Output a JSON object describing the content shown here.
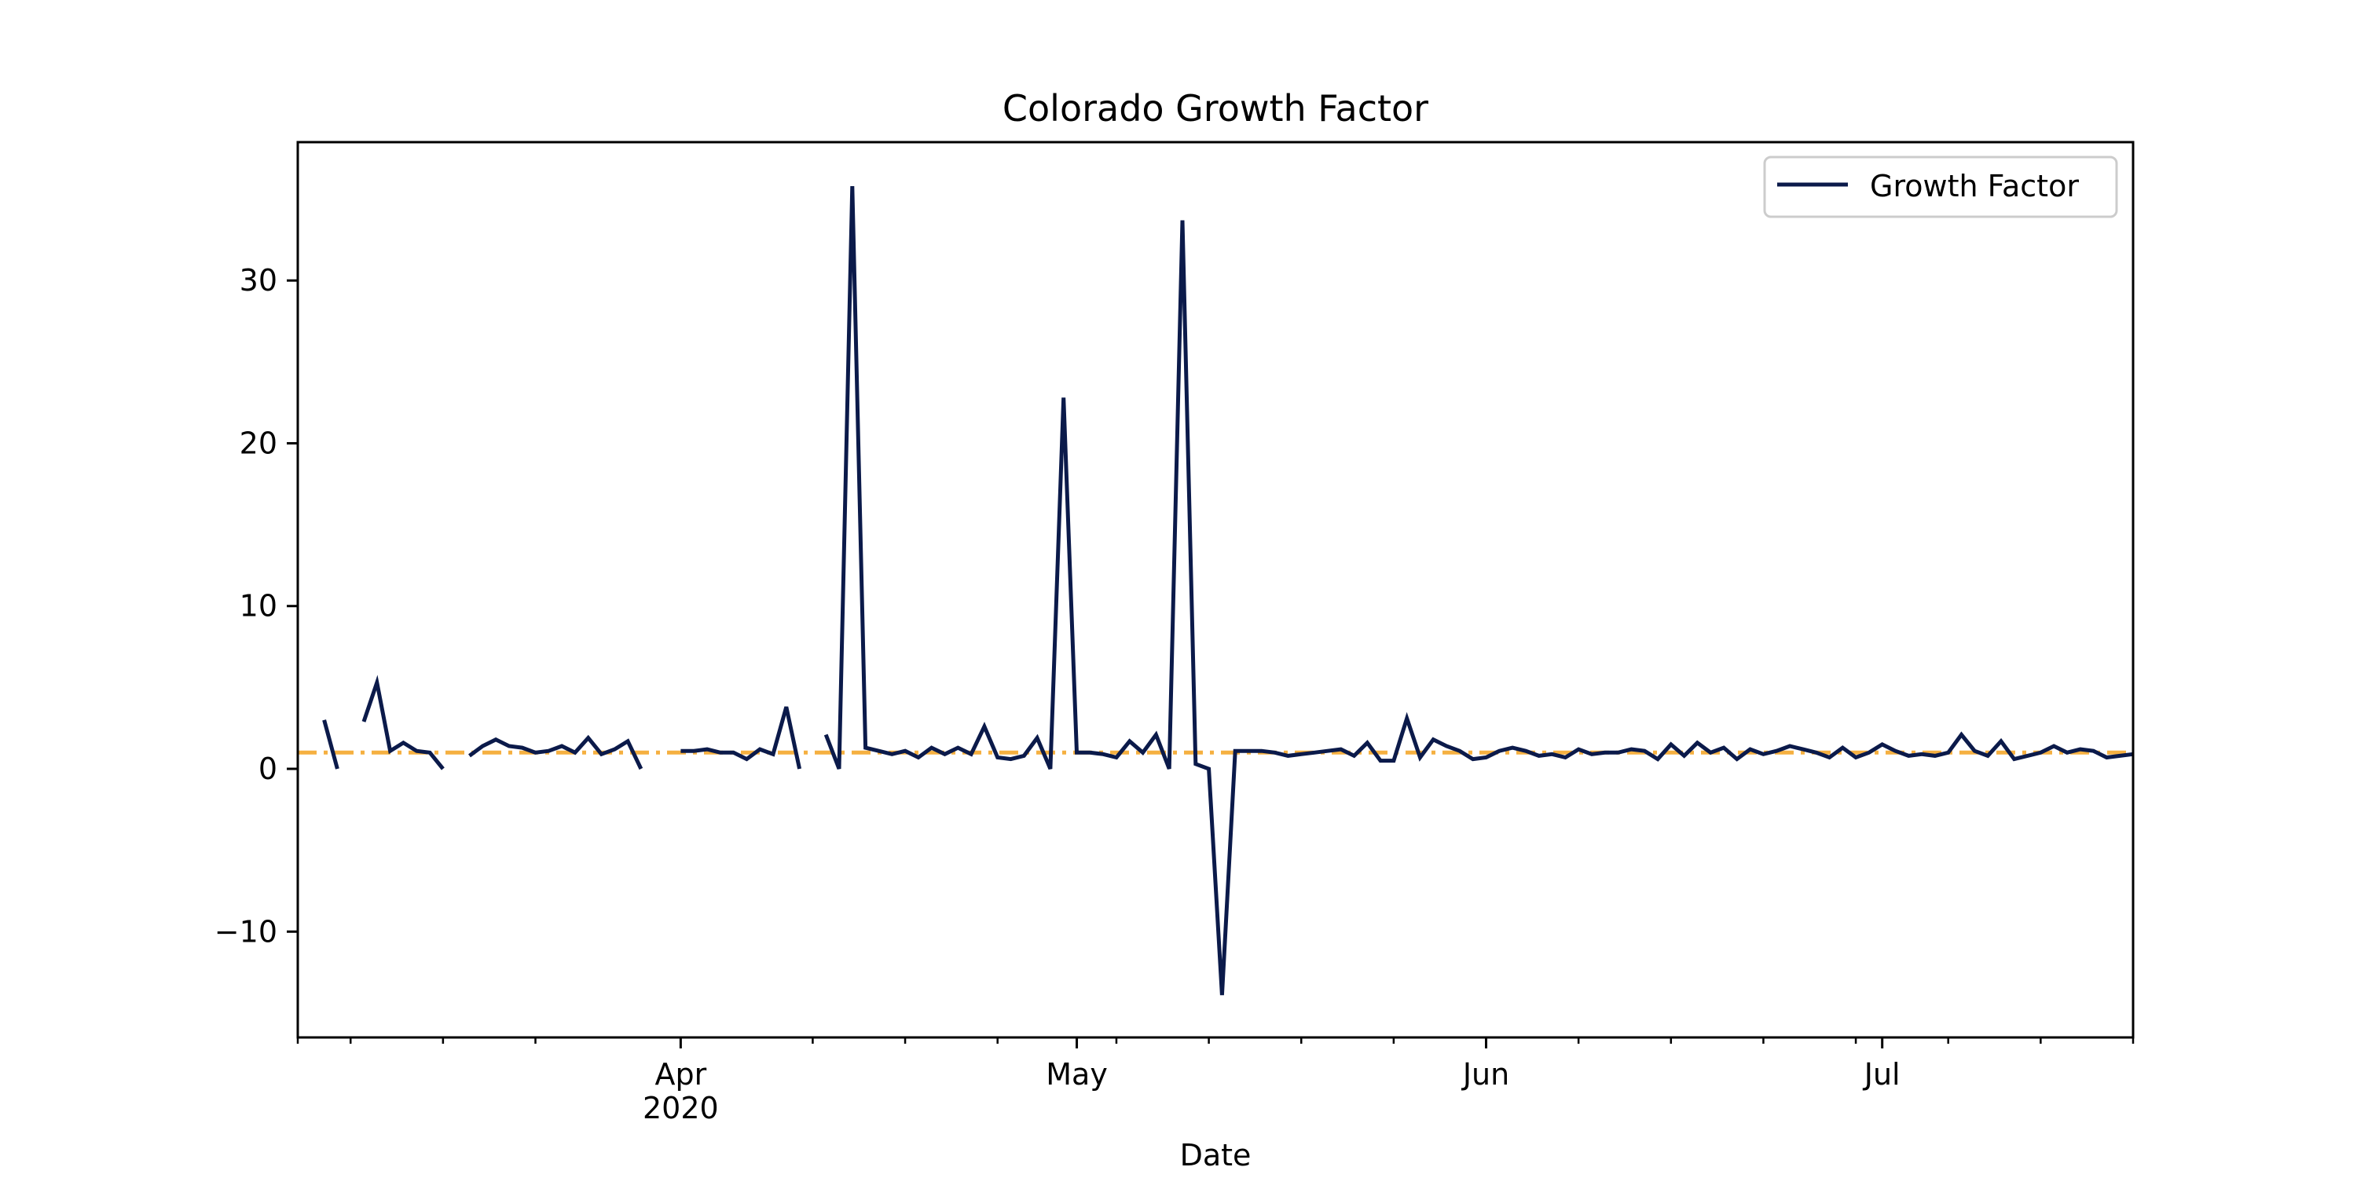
{
  "chart_data": {
    "type": "line",
    "title": "Colorado Growth Factor",
    "xlabel": "Date",
    "ylabel": "",
    "xlim": [
      "2020-03-03",
      "2020-07-20"
    ],
    "ylim": [
      -16.5,
      38.5
    ],
    "y_ticks": [
      -10,
      0,
      10,
      20,
      30
    ],
    "y_tick_labels": [
      "−10",
      "0",
      "10",
      "20",
      "30"
    ],
    "x_major_ticks": [
      {
        "date": "2020-04-01",
        "label": "Apr",
        "sublabel": "2020"
      },
      {
        "date": "2020-05-01",
        "label": "May",
        "sublabel": ""
      },
      {
        "date": "2020-06-01",
        "label": "Jun",
        "sublabel": ""
      },
      {
        "date": "2020-07-01",
        "label": "Jul",
        "sublabel": ""
      }
    ],
    "x_minor_ticks": [
      "2020-03-03",
      "2020-03-07",
      "2020-03-14",
      "2020-03-21",
      "2020-04-11",
      "2020-04-18",
      "2020-04-25",
      "2020-05-04",
      "2020-05-11",
      "2020-05-18",
      "2020-05-25",
      "2020-06-08",
      "2020-06-15",
      "2020-06-22",
      "2020-06-29",
      "2020-07-06",
      "2020-07-13",
      "2020-07-20"
    ],
    "grid": false,
    "legend_position": "top-right",
    "series": [
      {
        "name": "Growth Factor",
        "color": "#0b1a4a",
        "style": "solid",
        "points": [
          [
            "2020-03-05",
            3.0
          ],
          [
            "2020-03-06",
            0.0
          ],
          [
            "2020-03-07",
            null
          ],
          [
            "2020-03-08",
            2.9
          ],
          [
            "2020-03-09",
            5.3
          ],
          [
            "2020-03-10",
            1.1
          ],
          [
            "2020-03-11",
            1.6
          ],
          [
            "2020-03-12",
            1.1
          ],
          [
            "2020-03-13",
            1.0
          ],
          [
            "2020-03-14",
            0.0
          ],
          [
            "2020-03-15",
            null
          ],
          [
            "2020-03-16",
            0.8
          ],
          [
            "2020-03-17",
            1.4
          ],
          [
            "2020-03-18",
            1.8
          ],
          [
            "2020-03-19",
            1.4
          ],
          [
            "2020-03-20",
            1.3
          ],
          [
            "2020-03-21",
            1.0
          ],
          [
            "2020-03-22",
            1.1
          ],
          [
            "2020-03-23",
            1.4
          ],
          [
            "2020-03-24",
            1.0
          ],
          [
            "2020-03-25",
            1.9
          ],
          [
            "2020-03-26",
            0.9
          ],
          [
            "2020-03-27",
            1.2
          ],
          [
            "2020-03-28",
            1.7
          ],
          [
            "2020-03-29",
            0.0
          ],
          [
            "2020-03-30",
            null
          ],
          [
            "2020-04-01",
            1.1
          ],
          [
            "2020-04-02",
            1.1
          ],
          [
            "2020-04-03",
            1.2
          ],
          [
            "2020-04-04",
            1.0
          ],
          [
            "2020-04-05",
            1.0
          ],
          [
            "2020-04-06",
            0.6
          ],
          [
            "2020-04-07",
            1.2
          ],
          [
            "2020-04-08",
            0.9
          ],
          [
            "2020-04-09",
            3.8
          ],
          [
            "2020-04-10",
            0.0
          ],
          [
            "2020-04-11",
            null
          ],
          [
            "2020-04-12",
            2.1
          ],
          [
            "2020-04-13",
            0.0
          ],
          [
            "2020-04-14",
            35.8
          ],
          [
            "2020-04-15",
            1.3
          ],
          [
            "2020-04-16",
            1.1
          ],
          [
            "2020-04-17",
            0.9
          ],
          [
            "2020-04-18",
            1.1
          ],
          [
            "2020-04-19",
            0.7
          ],
          [
            "2020-04-20",
            1.3
          ],
          [
            "2020-04-21",
            0.9
          ],
          [
            "2020-04-22",
            1.3
          ],
          [
            "2020-04-23",
            0.9
          ],
          [
            "2020-04-24",
            2.6
          ],
          [
            "2020-04-25",
            0.7
          ],
          [
            "2020-04-26",
            0.6
          ],
          [
            "2020-04-27",
            0.8
          ],
          [
            "2020-04-28",
            1.9
          ],
          [
            "2020-04-29",
            0.0
          ],
          [
            "2020-04-30",
            22.8
          ],
          [
            "2020-05-01",
            1.0
          ],
          [
            "2020-05-02",
            1.0
          ],
          [
            "2020-05-03",
            0.9
          ],
          [
            "2020-05-04",
            0.7
          ],
          [
            "2020-05-05",
            1.7
          ],
          [
            "2020-05-06",
            1.0
          ],
          [
            "2020-05-07",
            2.1
          ],
          [
            "2020-05-08",
            0.0
          ],
          [
            "2020-05-09",
            33.7
          ],
          [
            "2020-05-10",
            0.3
          ],
          [
            "2020-05-11",
            0.0
          ],
          [
            "2020-05-12",
            -13.9
          ],
          [
            "2020-05-13",
            1.1
          ],
          [
            "2020-05-14",
            1.1
          ],
          [
            "2020-05-15",
            1.1
          ],
          [
            "2020-05-16",
            1.0
          ],
          [
            "2020-05-17",
            0.8
          ],
          [
            "2020-05-18",
            0.9
          ],
          [
            "2020-05-19",
            1.0
          ],
          [
            "2020-05-20",
            1.1
          ],
          [
            "2020-05-21",
            1.2
          ],
          [
            "2020-05-22",
            0.8
          ],
          [
            "2020-05-23",
            1.6
          ],
          [
            "2020-05-24",
            0.5
          ],
          [
            "2020-05-25",
            0.5
          ],
          [
            "2020-05-26",
            3.1
          ],
          [
            "2020-05-27",
            0.7
          ],
          [
            "2020-05-28",
            1.8
          ],
          [
            "2020-05-29",
            1.4
          ],
          [
            "2020-05-30",
            1.1
          ],
          [
            "2020-05-31",
            0.6
          ],
          [
            "2020-06-01",
            0.7
          ],
          [
            "2020-06-02",
            1.1
          ],
          [
            "2020-06-03",
            1.3
          ],
          [
            "2020-06-04",
            1.1
          ],
          [
            "2020-06-05",
            0.8
          ],
          [
            "2020-06-06",
            0.9
          ],
          [
            "2020-06-07",
            0.7
          ],
          [
            "2020-06-08",
            1.2
          ],
          [
            "2020-06-09",
            0.9
          ],
          [
            "2020-06-10",
            1.0
          ],
          [
            "2020-06-11",
            1.0
          ],
          [
            "2020-06-12",
            1.2
          ],
          [
            "2020-06-13",
            1.1
          ],
          [
            "2020-06-14",
            0.6
          ],
          [
            "2020-06-15",
            1.5
          ],
          [
            "2020-06-16",
            0.8
          ],
          [
            "2020-06-17",
            1.6
          ],
          [
            "2020-06-18",
            1.0
          ],
          [
            "2020-06-19",
            1.3
          ],
          [
            "2020-06-20",
            0.6
          ],
          [
            "2020-06-21",
            1.2
          ],
          [
            "2020-06-22",
            0.9
          ],
          [
            "2020-06-23",
            1.1
          ],
          [
            "2020-06-24",
            1.4
          ],
          [
            "2020-06-25",
            1.2
          ],
          [
            "2020-06-26",
            1.0
          ],
          [
            "2020-06-27",
            0.7
          ],
          [
            "2020-06-28",
            1.3
          ],
          [
            "2020-06-29",
            0.7
          ],
          [
            "2020-06-30",
            1.0
          ],
          [
            "2020-07-01",
            1.5
          ],
          [
            "2020-07-02",
            1.1
          ],
          [
            "2020-07-03",
            0.8
          ],
          [
            "2020-07-04",
            0.9
          ],
          [
            "2020-07-05",
            0.8
          ],
          [
            "2020-07-06",
            1.0
          ],
          [
            "2020-07-07",
            2.1
          ],
          [
            "2020-07-08",
            1.1
          ],
          [
            "2020-07-09",
            0.8
          ],
          [
            "2020-07-10",
            1.7
          ],
          [
            "2020-07-11",
            0.6
          ],
          [
            "2020-07-12",
            0.8
          ],
          [
            "2020-07-13",
            1.0
          ],
          [
            "2020-07-14",
            1.4
          ],
          [
            "2020-07-15",
            1.0
          ],
          [
            "2020-07-16",
            1.2
          ],
          [
            "2020-07-17",
            1.1
          ],
          [
            "2020-07-18",
            0.7
          ],
          [
            "2020-07-19",
            0.8
          ],
          [
            "2020-07-20",
            0.9
          ]
        ]
      }
    ],
    "reference_line": {
      "value": 1.0,
      "color": "#f5b041",
      "style": "dash-dot"
    }
  }
}
